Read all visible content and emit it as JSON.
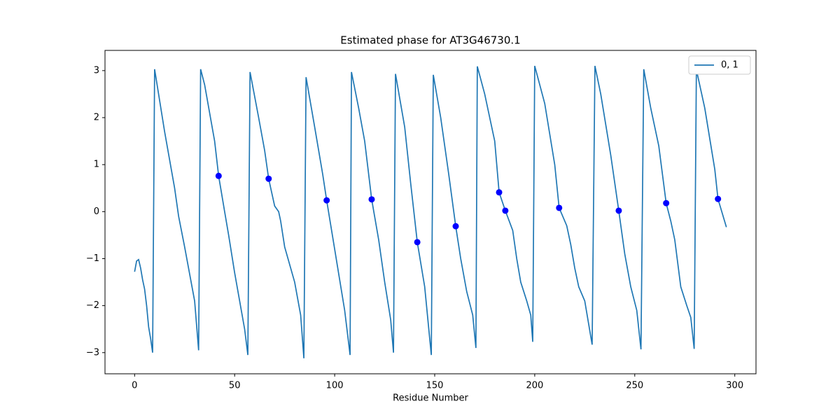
{
  "chart_data": {
    "type": "line",
    "title": "Estimated phase for AT3G46730.1",
    "x_label": "Residue Number",
    "series": [
      {
        "name": "0, 1",
        "color": "#1f77b4",
        "x": [
          0,
          1,
          2,
          3,
          4,
          5,
          6,
          7,
          8,
          9,
          10,
          15,
          20,
          22,
          25,
          30,
          32,
          33,
          35,
          40,
          42,
          45,
          47,
          50,
          55,
          56.6,
          57.7,
          62,
          65,
          67,
          70,
          72,
          73,
          75,
          80,
          83,
          84.6,
          85.7,
          90,
          94,
          96,
          100,
          105,
          107.7,
          108.4,
          112,
          115,
          118.5,
          122,
          125,
          128,
          129.4,
          130.4,
          135,
          138,
          141.3,
          145,
          148.3,
          149.3,
          153,
          157,
          160.5,
          163,
          166,
          169,
          170.6,
          171.3,
          175,
          180,
          182.2,
          185.3,
          189,
          191,
          193,
          196,
          198,
          199,
          200,
          205,
          210,
          212.2,
          216,
          218,
          220,
          222,
          225,
          228.7,
          230.1,
          233,
          238,
          242,
          245,
          248,
          251,
          253.1,
          254.5,
          258,
          262,
          265.7,
          268,
          270,
          273,
          276,
          278,
          279.7,
          280.8,
          285,
          290,
          291.6,
          295.8
        ],
        "y": [
          -1.28,
          -1.05,
          -1.02,
          -1.2,
          -1.45,
          -1.65,
          -2.0,
          -2.45,
          -2.7,
          -3.0,
          3.03,
          1.7,
          0.5,
          -0.1,
          -0.75,
          -1.9,
          -2.95,
          3.03,
          2.7,
          1.5,
          0.76,
          0.0,
          -0.5,
          -1.3,
          -2.5,
          -3.05,
          2.97,
          2.0,
          1.3,
          0.7,
          0.12,
          0.0,
          -0.2,
          -0.75,
          -1.5,
          -2.2,
          -3.12,
          2.86,
          1.8,
          0.8,
          0.24,
          -0.8,
          -2.1,
          -3.05,
          2.97,
          2.2,
          1.5,
          0.26,
          -0.6,
          -1.5,
          -2.3,
          -3.0,
          2.93,
          1.8,
          0.6,
          -0.65,
          -1.6,
          -3.05,
          2.91,
          2.0,
          0.8,
          -0.31,
          -1.0,
          -1.7,
          -2.2,
          -2.9,
          3.09,
          2.5,
          1.5,
          0.41,
          0.02,
          -0.4,
          -1.0,
          -1.5,
          -1.9,
          -2.2,
          -2.77,
          3.1,
          2.3,
          1.0,
          0.08,
          -0.3,
          -0.7,
          -1.2,
          -1.6,
          -1.9,
          -2.83,
          3.1,
          2.5,
          1.2,
          0.02,
          -0.9,
          -1.6,
          -2.1,
          -2.93,
          3.03,
          2.2,
          1.4,
          0.18,
          -0.2,
          -0.6,
          -1.6,
          -2.0,
          -2.25,
          -2.92,
          3.02,
          2.2,
          0.9,
          0.27,
          -0.33
        ]
      }
    ],
    "points": {
      "color": "#0000ff",
      "x": [
        42,
        67,
        96,
        118.5,
        141.3,
        160.5,
        182.2,
        185.3,
        212.2,
        242,
        265.7,
        291.6
      ],
      "y": [
        0.76,
        0.7,
        0.24,
        0.26,
        -0.65,
        -0.31,
        0.41,
        0.02,
        0.08,
        0.02,
        0.18,
        0.27
      ]
    },
    "xlim": [
      -14.8,
      310.6
    ],
    "ylim": [
      -3.45,
      3.43
    ],
    "xticks": [
      0,
      50,
      100,
      150,
      200,
      250,
      300
    ],
    "yticks": [
      {
        "value": -3,
        "label": "−3"
      },
      {
        "value": -2,
        "label": "−2"
      },
      {
        "value": -1,
        "label": "−1"
      },
      0,
      1,
      2,
      3
    ],
    "legend": "upper right",
    "grid": false
  }
}
